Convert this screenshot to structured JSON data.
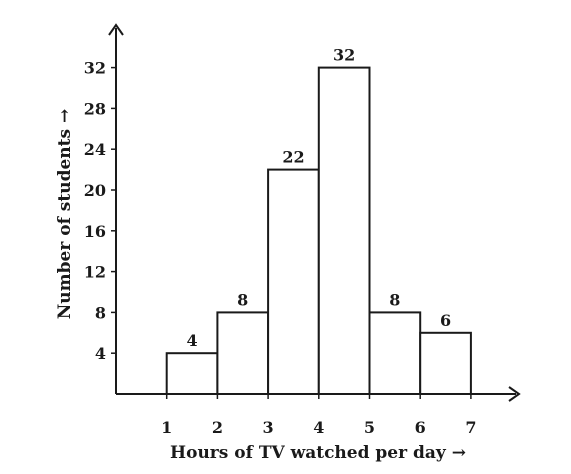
{
  "chart_data": {
    "type": "bar",
    "bins": [
      {
        "x0": 1,
        "x1": 2,
        "value": 4,
        "label": "4"
      },
      {
        "x0": 2,
        "x1": 3,
        "value": 8,
        "label": "8"
      },
      {
        "x0": 3,
        "x1": 4,
        "value": 22,
        "label": "22"
      },
      {
        "x0": 4,
        "x1": 5,
        "value": 32,
        "label": "32"
      },
      {
        "x0": 5,
        "x1": 6,
        "value": 8,
        "label": "8"
      },
      {
        "x0": 6,
        "x1": 7,
        "value": 6,
        "label": "6"
      }
    ],
    "xticks": [
      "1",
      "2",
      "3",
      "4",
      "5",
      "6",
      "7"
    ],
    "yticks": [
      "4",
      "8",
      "12",
      "16",
      "20",
      "24",
      "28",
      "32"
    ],
    "xlabel": "Hours of TV watched per day →",
    "ylabel": "Number of students →",
    "xlim": [
      0,
      7
    ],
    "ylim": [
      0,
      32
    ],
    "grid": false
  }
}
